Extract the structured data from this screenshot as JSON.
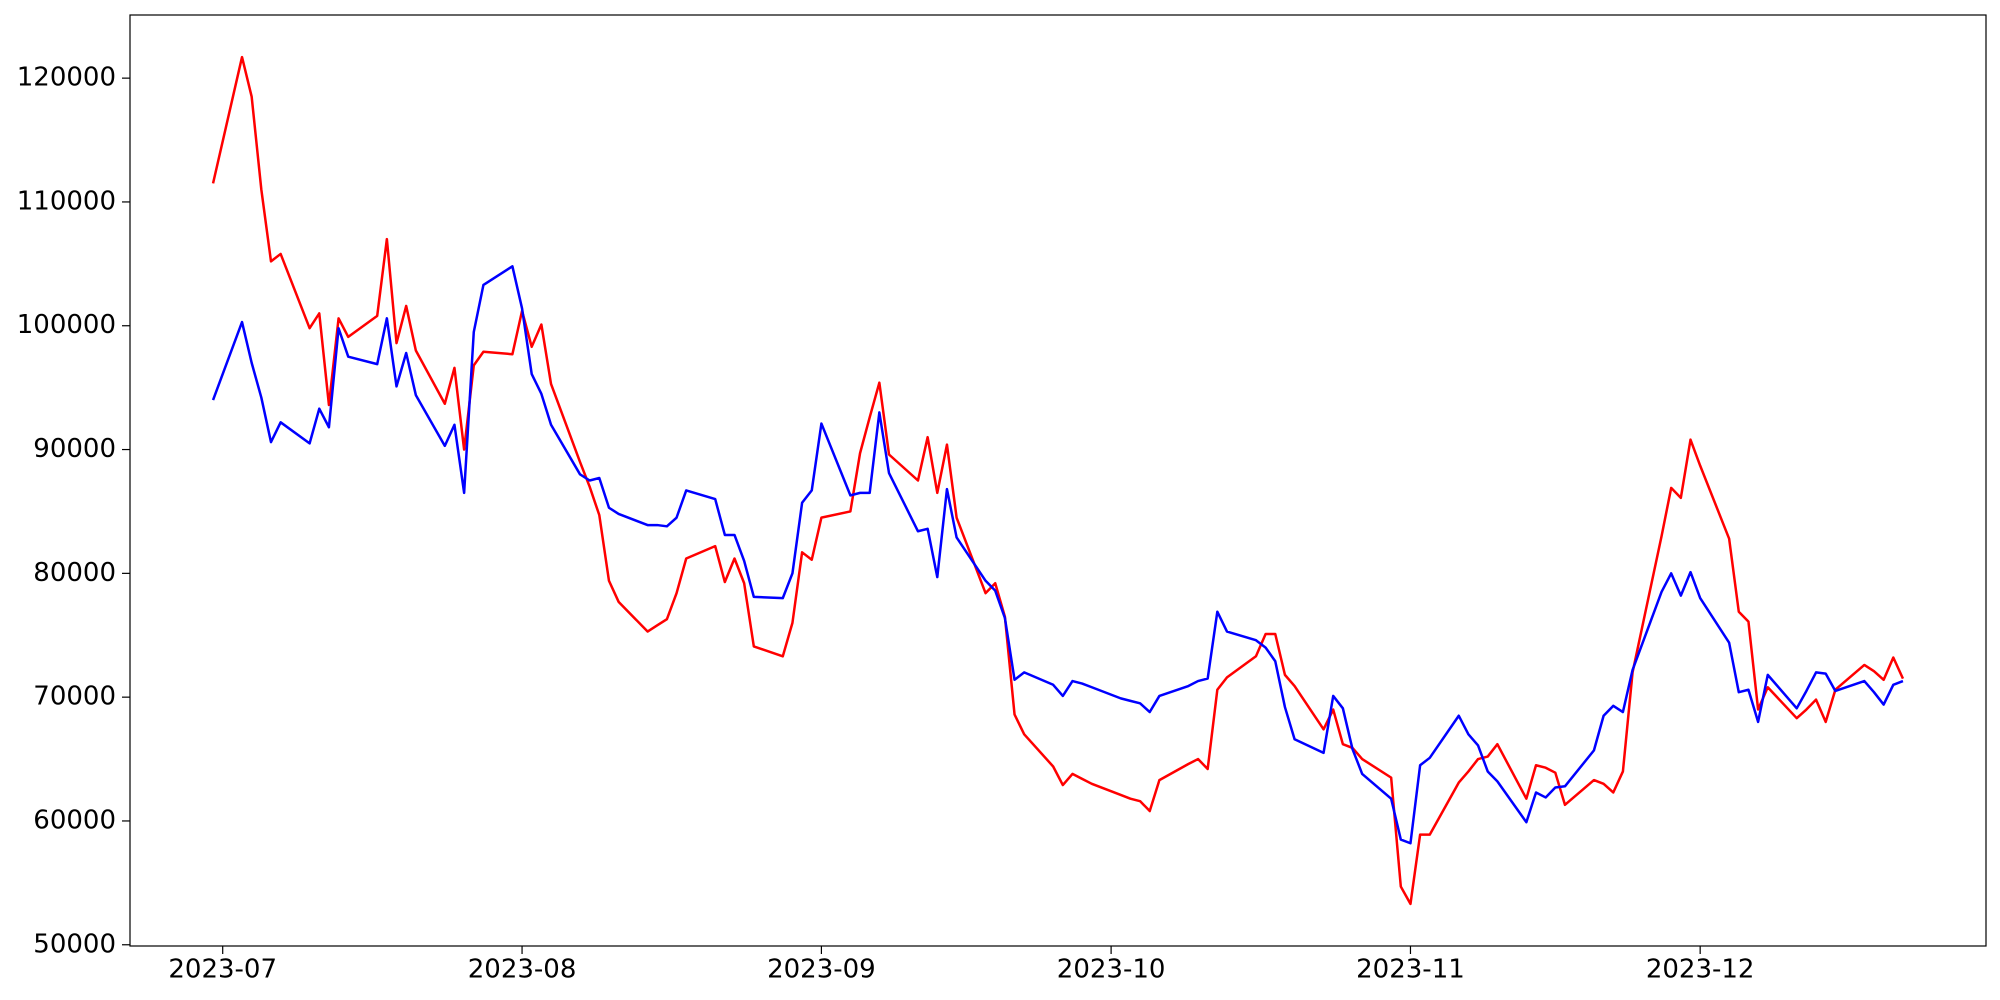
{
  "chart_data": {
    "type": "line",
    "x": [
      -1,
      2,
      3,
      4,
      5,
      6,
      9,
      10,
      11,
      12,
      13,
      16,
      17,
      18,
      19,
      20,
      23,
      24,
      25,
      26,
      27,
      30,
      31,
      32,
      33,
      34,
      37,
      38,
      39,
      40,
      41,
      44,
      45,
      46,
      47,
      48,
      51,
      52,
      53,
      54,
      55,
      58,
      59,
      60,
      61,
      62,
      65,
      66,
      67,
      68,
      69,
      72,
      73,
      74,
      75,
      76,
      79,
      80,
      81,
      82,
      83,
      86,
      87,
      88,
      89,
      90,
      93,
      94,
      95,
      96,
      97,
      100,
      101,
      102,
      103,
      104,
      107,
      108,
      109,
      110,
      111,
      114,
      115,
      116,
      117,
      118,
      121,
      122,
      123,
      124,
      125,
      128,
      129,
      130,
      131,
      132,
      135,
      136,
      137,
      138,
      139,
      142,
      143,
      144,
      145,
      146,
      149,
      150,
      151,
      152,
      153,
      156,
      157,
      158,
      159,
      160,
      163,
      164,
      165,
      166,
      167,
      170,
      171,
      172,
      173,
      174
    ],
    "series": [
      {
        "color": "#ff0000",
        "values": [
          111500,
          121700,
          118500,
          111000,
          105200,
          105800,
          99800,
          101000,
          93600,
          100600,
          99100,
          100800,
          107000,
          98600,
          101600,
          98000,
          93700,
          96600,
          90000,
          96800,
          97900,
          97700,
          101200,
          98300,
          100100,
          95300,
          89000,
          87000,
          84700,
          79400,
          77700,
          75300,
          75800,
          76300,
          78400,
          81200,
          82200,
          79300,
          81200,
          79200,
          74100,
          73300,
          76000,
          81700,
          81100,
          84500,
          85000,
          89700,
          92600,
          95400,
          89600,
          87500,
          91000,
          86500,
          90400,
          84500,
          78400,
          79200,
          76500,
          68600,
          67000,
          64400,
          62900,
          63800,
          63400,
          63000,
          62100,
          61800,
          61600,
          60800,
          63300,
          64600,
          65000,
          64200,
          70600,
          71600,
          73300,
          75100,
          75100,
          71800,
          70900,
          67400,
          69000,
          66200,
          65900,
          65000,
          63500,
          54700,
          53300,
          58900,
          58900,
          63100,
          64000,
          65000,
          65200,
          66200,
          61800,
          64500,
          64300,
          63900,
          61300,
          63300,
          63000,
          62300,
          64000,
          72000,
          83000,
          86900,
          86100,
          90800,
          88700,
          82800,
          76900,
          76100,
          69000,
          70800,
          68300,
          69000,
          69800,
          68000,
          70600,
          72600,
          72100,
          71400,
          73200,
          71500
        ]
      },
      {
        "color": "#0000ff",
        "values": [
          94000,
          100300,
          97000,
          94200,
          90600,
          92200,
          90500,
          93300,
          91800,
          99800,
          97500,
          96900,
          100600,
          95100,
          97800,
          94400,
          90300,
          92000,
          86500,
          99500,
          103300,
          104800,
          101400,
          96100,
          94500,
          92000,
          88000,
          87500,
          87700,
          85300,
          84800,
          83900,
          83900,
          83800,
          84500,
          86700,
          86000,
          83100,
          83100,
          81000,
          78100,
          78000,
          80000,
          85700,
          86700,
          92100,
          86300,
          86500,
          86500,
          93000,
          88100,
          83400,
          83600,
          79700,
          86800,
          82900,
          79400,
          78600,
          76400,
          71400,
          72000,
          71000,
          70100,
          71300,
          71100,
          70800,
          69900,
          69700,
          69500,
          68800,
          70100,
          70900,
          71300,
          71500,
          76900,
          75300,
          74600,
          74000,
          72900,
          69200,
          66600,
          65500,
          70100,
          69100,
          65800,
          63800,
          61800,
          58500,
          58200,
          64500,
          65100,
          68500,
          67000,
          66100,
          64000,
          63200,
          59900,
          62300,
          61900,
          62700,
          62800,
          65700,
          68500,
          69300,
          68800,
          72200,
          78500,
          80000,
          78200,
          80100,
          78000,
          74400,
          70400,
          70600,
          68000,
          71800,
          69100,
          70500,
          72000,
          71900,
          70500,
          71300,
          70400,
          69400,
          71000,
          71300
        ]
      }
    ],
    "xlim": [
      -9.6,
      182.6
    ],
    "xticks": [
      {
        "value": 0,
        "label": "2023-07"
      },
      {
        "value": 31,
        "label": "2023-08"
      },
      {
        "value": 62,
        "label": "2023-09"
      },
      {
        "value": 92,
        "label": "2023-10"
      },
      {
        "value": 123,
        "label": "2023-11"
      },
      {
        "value": 153,
        "label": "2023-12"
      }
    ],
    "ylim": [
      49900,
      125100
    ],
    "yticks": [
      50000,
      60000,
      70000,
      80000,
      90000,
      100000,
      110000,
      120000
    ],
    "grid": false
  }
}
